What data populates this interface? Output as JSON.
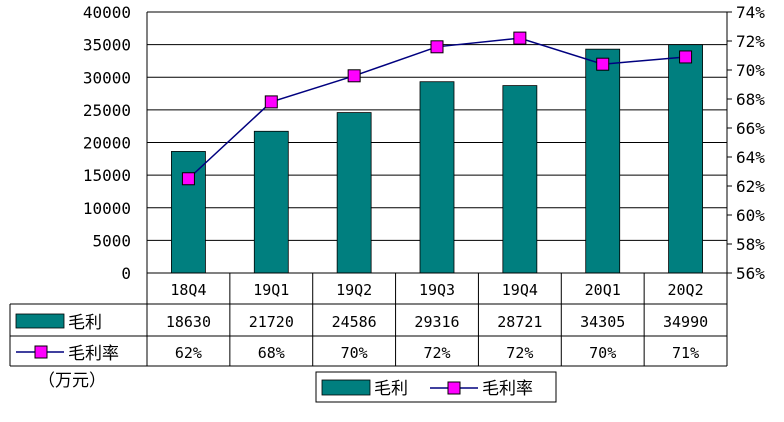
{
  "chart_data": {
    "type": "bar",
    "categories": [
      "18Q4",
      "19Q1",
      "19Q2",
      "19Q3",
      "19Q4",
      "20Q1",
      "20Q2"
    ],
    "series": [
      {
        "name": "毛利",
        "kind": "bar",
        "axis": "left",
        "values": [
          18630,
          21720,
          24586,
          29316,
          28721,
          34305,
          34990
        ],
        "color": "#007f7f"
      },
      {
        "name": "毛利率",
        "kind": "line",
        "axis": "right",
        "values": [
          62.5,
          67.8,
          69.6,
          71.6,
          72.2,
          70.4,
          70.9
        ],
        "color": "#ff00ff",
        "line_color": "#00007f"
      }
    ],
    "y_left": {
      "min": 0,
      "max": 40000,
      "step": 5000,
      "ticks": [
        "0",
        "5000",
        "10000",
        "15000",
        "20000",
        "25000",
        "30000",
        "35000",
        "40000"
      ]
    },
    "y_right": {
      "min": 56,
      "max": 74,
      "step": 2,
      "ticks": [
        "56%",
        "58%",
        "60%",
        "62%",
        "64%",
        "66%",
        "68%",
        "70%",
        "72%",
        "74%"
      ]
    },
    "grid": true,
    "table": {
      "rows": [
        {
          "label": "毛利",
          "values": [
            "18630",
            "21720",
            "24586",
            "29316",
            "28721",
            "34305",
            "34990"
          ]
        },
        {
          "label": "毛利率",
          "values": [
            "62%",
            "68%",
            "70%",
            "72%",
            "72%",
            "70%",
            "71%"
          ]
        }
      ]
    },
    "unit_note": "（万元）",
    "legend": {
      "position": "bottom-center",
      "items": [
        "毛利",
        "毛利率"
      ]
    }
  }
}
